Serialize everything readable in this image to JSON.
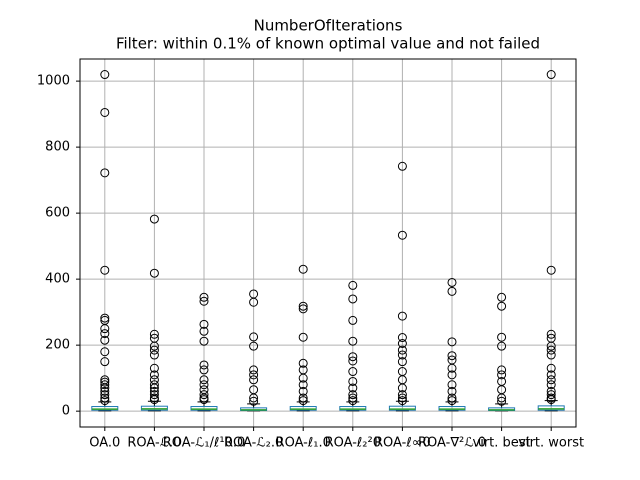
{
  "chart_data": {
    "type": "box",
    "title": "NumberOfIterations",
    "subtitle": "Filter: within 0.1% of known optimal value and not failed",
    "categories": [
      "OA.0",
      "ROA-ℒ.0",
      "ROA-ℒ₁/ℓ¹0.0",
      "ROA-ℒ₂.0",
      "ROA-ℓ₁.0",
      "ROA-ℓ₂²0",
      "ROA-ℓ∞0",
      "ROA-∇²ℒ.0",
      "virt. best",
      "virt. worst"
    ],
    "box_color": "#1f77b4",
    "median_color": "#2ca02c",
    "grid": true,
    "ylim": [
      -48,
      1067
    ],
    "yticks": [
      0,
      200,
      400,
      600,
      800,
      1000
    ],
    "boxes": [
      {
        "whislo": 1,
        "q1": 3,
        "med": 6,
        "q3": 14,
        "whishi": 28,
        "fliers": [
          1020,
          905,
          722,
          427,
          282,
          275,
          250,
          235,
          215,
          180,
          150,
          95,
          88,
          80,
          70,
          60,
          50,
          40,
          32
        ]
      },
      {
        "whislo": 1,
        "q1": 3,
        "med": 7,
        "q3": 15,
        "whishi": 30,
        "fliers": [
          582,
          418,
          233,
          221,
          197,
          185,
          170,
          130,
          110,
          95,
          80,
          70,
          60,
          50,
          40,
          35
        ]
      },
      {
        "whislo": 1,
        "q1": 3,
        "med": 6,
        "q3": 14,
        "whishi": 28,
        "fliers": [
          345,
          333,
          263,
          242,
          212,
          140,
          125,
          95,
          80,
          65,
          50,
          40,
          35
        ]
      },
      {
        "whislo": 1,
        "q1": 2,
        "med": 4,
        "q3": 10,
        "whishi": 22,
        "fliers": [
          355,
          330,
          225,
          197,
          125,
          110,
          95,
          65,
          40,
          30
        ]
      },
      {
        "whislo": 1,
        "q1": 3,
        "med": 6,
        "q3": 14,
        "whishi": 28,
        "fliers": [
          430,
          318,
          310,
          224,
          145,
          125,
          100,
          80,
          60,
          40,
          32
        ]
      },
      {
        "whislo": 1,
        "q1": 3,
        "med": 6,
        "q3": 14,
        "whishi": 28,
        "fliers": [
          381,
          340,
          275,
          212,
          165,
          152,
          120,
          90,
          70,
          50,
          40,
          32
        ]
      },
      {
        "whislo": 1,
        "q1": 3,
        "med": 6,
        "q3": 15,
        "whishi": 30,
        "fliers": [
          742,
          533,
          288,
          223,
          205,
          185,
          170,
          150,
          120,
          95,
          70,
          50,
          40,
          32
        ]
      },
      {
        "whislo": 1,
        "q1": 3,
        "med": 6,
        "q3": 14,
        "whishi": 28,
        "fliers": [
          390,
          363,
          210,
          168,
          155,
          130,
          110,
          80,
          60,
          40,
          32
        ]
      },
      {
        "whislo": 1,
        "q1": 2,
        "med": 4,
        "q3": 10,
        "whishi": 22,
        "fliers": [
          345,
          318,
          224,
          197,
          125,
          110,
          90,
          65,
          40,
          30
        ]
      },
      {
        "whislo": 1,
        "q1": 3,
        "med": 7,
        "q3": 16,
        "whishi": 32,
        "fliers": [
          1020,
          427,
          233,
          221,
          197,
          185,
          170,
          130,
          110,
          95,
          80,
          60,
          50,
          40,
          35
        ]
      }
    ]
  }
}
